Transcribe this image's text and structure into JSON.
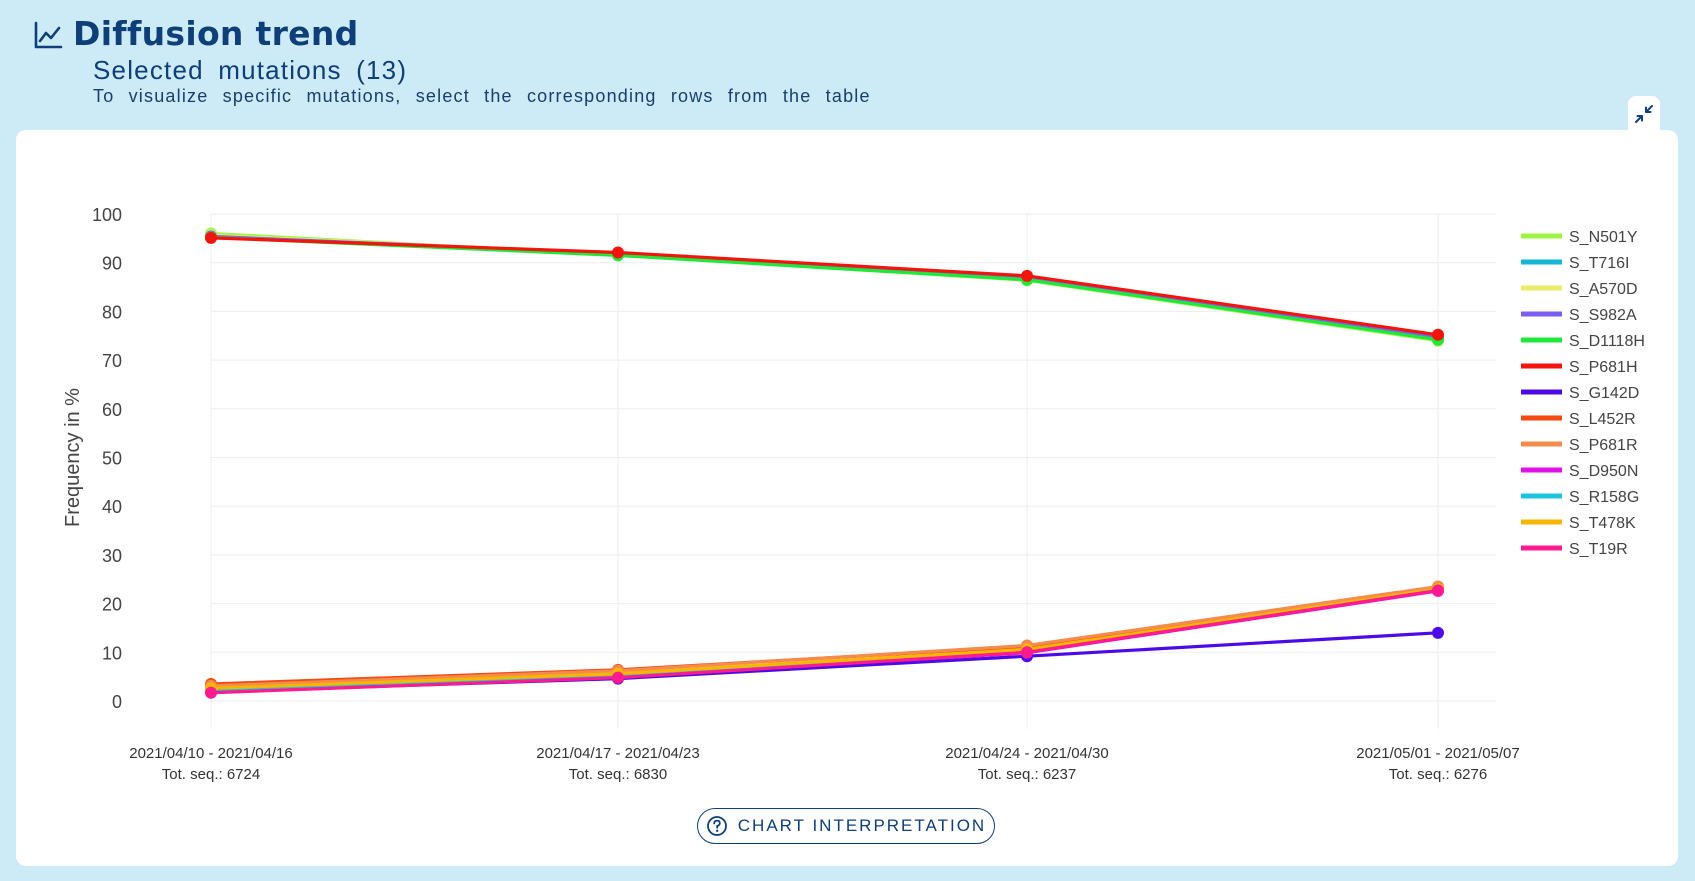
{
  "header": {
    "title": "Diffusion trend",
    "subtitle": "Selected mutations (13)",
    "hint": "To visualize specific mutations, select the corresponding rows from the table",
    "icon": "chart-line-icon",
    "collapse_icon": "collapse-arrows-icon"
  },
  "button": {
    "label": "CHART INTERPRETATION",
    "icon": "help-circle-icon"
  },
  "chart_data": {
    "type": "line",
    "ylabel": "Frequency in %",
    "ylim": [
      0,
      100
    ],
    "yticks": [
      0,
      10,
      20,
      30,
      40,
      50,
      60,
      70,
      80,
      90,
      100
    ],
    "grid": true,
    "legend_position": "right",
    "categories": [
      [
        "2021/04/10 - 2021/04/16",
        "Tot. seq.: 6724"
      ],
      [
        "2021/04/17 - 2021/04/23",
        "Tot. seq.: 6830"
      ],
      [
        "2021/04/24 - 2021/04/30",
        "Tot. seq.: 6237"
      ],
      [
        "2021/05/01 - 2021/05/07",
        "Tot. seq.: 6276"
      ]
    ],
    "series": [
      {
        "name": "S_N501Y",
        "color": "#9cf542",
        "values": [
          96.0,
          91.6,
          86.4,
          74.0
        ]
      },
      {
        "name": "S_T716I",
        "color": "#16b7d6",
        "values": [
          95.3,
          91.8,
          86.8,
          74.5
        ]
      },
      {
        "name": "S_A570D",
        "color": "#ecec6a",
        "values": [
          95.6,
          91.9,
          86.9,
          74.6
        ]
      },
      {
        "name": "S_S982A",
        "color": "#7b5ef0",
        "values": [
          95.4,
          91.9,
          86.9,
          74.7
        ]
      },
      {
        "name": "S_D1118H",
        "color": "#1fe83a",
        "values": [
          95.2,
          91.5,
          86.5,
          74.2
        ]
      },
      {
        "name": "S_P681H",
        "color": "#f2140d",
        "values": [
          95.1,
          92.1,
          87.3,
          75.2
        ]
      },
      {
        "name": "S_G142D",
        "color": "#4c0ae8",
        "values": [
          1.9,
          4.6,
          9.2,
          14.0
        ]
      },
      {
        "name": "S_L452R",
        "color": "#f24a12",
        "values": [
          3.5,
          6.4,
          11.2,
          23.2
        ]
      },
      {
        "name": "S_P681R",
        "color": "#f58b4c",
        "values": [
          3.1,
          6.2,
          11.4,
          23.5
        ]
      },
      {
        "name": "S_D950N",
        "color": "#e112e6",
        "values": [
          2.0,
          5.0,
          9.9,
          22.6
        ]
      },
      {
        "name": "S_R158G",
        "color": "#1ac3e0",
        "values": [
          2.2,
          5.2,
          10.2,
          22.8
        ]
      },
      {
        "name": "S_T478K",
        "color": "#f7b600",
        "values": [
          2.6,
          5.6,
          10.6,
          23.0
        ]
      },
      {
        "name": "S_T19R",
        "color": "#ff1a8f",
        "values": [
          1.7,
          4.8,
          10.0,
          22.7
        ]
      }
    ]
  }
}
